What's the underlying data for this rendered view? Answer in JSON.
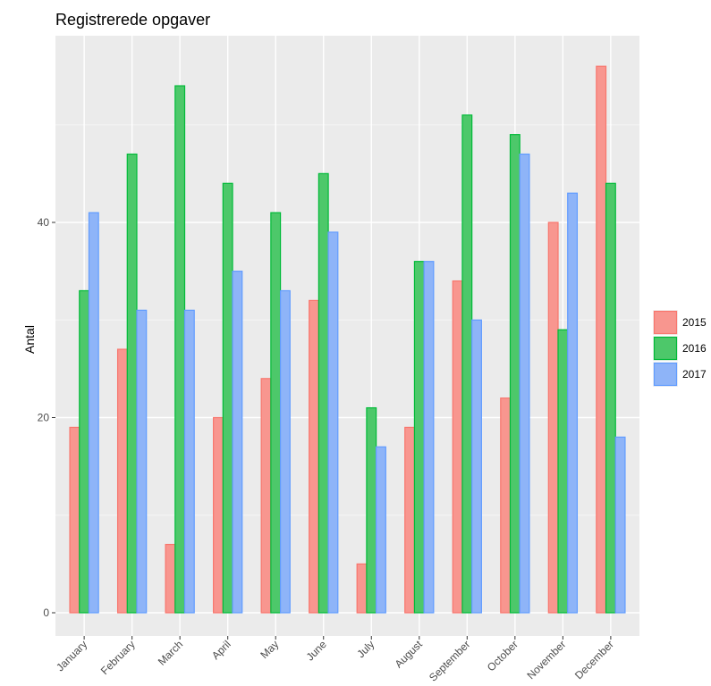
{
  "chart_data": {
    "type": "bar",
    "title": "Registrerede opgaver",
    "xlabel": "",
    "ylabel": "Antal",
    "ylim": [
      -3,
      59
    ],
    "yticks": [
      0,
      20,
      40
    ],
    "grid": true,
    "legend_position": "right",
    "categories": [
      "January",
      "February",
      "March",
      "April",
      "May",
      "June",
      "July",
      "August",
      "September",
      "October",
      "November",
      "December"
    ],
    "series": [
      {
        "name": "2015",
        "fill": "#F8968F",
        "stroke": "#F8766D",
        "values": [
          19,
          27,
          7,
          20,
          24,
          32,
          5,
          19,
          34,
          22,
          40,
          56
        ]
      },
      {
        "name": "2016",
        "fill": "#4DC86A",
        "stroke": "#00BA38",
        "values": [
          33,
          47,
          54,
          44,
          41,
          45,
          21,
          36,
          51,
          49,
          29,
          44
        ]
      },
      {
        "name": "2017",
        "fill": "#8EB4F8",
        "stroke": "#619CFF",
        "values": [
          41,
          31,
          31,
          35,
          33,
          39,
          17,
          36,
          30,
          47,
          43,
          18
        ]
      }
    ]
  }
}
